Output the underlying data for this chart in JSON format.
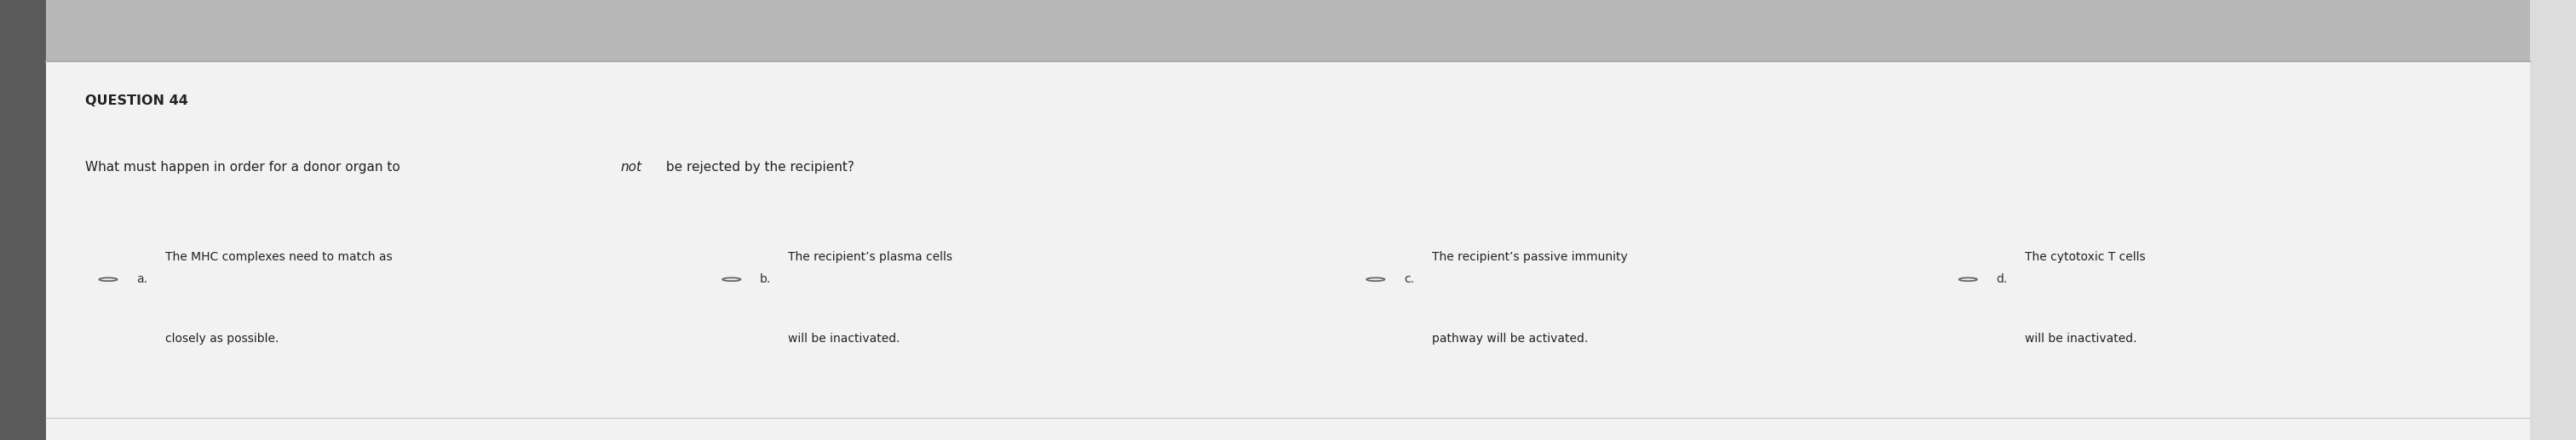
{
  "bg_color": "#e0e0e0",
  "panel_color": "#f2f2f2",
  "border_color": "#cccccc",
  "question_number": "QUESTION 44",
  "question_text_part1": "What must happen in order for a donor organ to ",
  "question_text_italic": "not",
  "question_text_part2": " be rejected by the recipient?",
  "options": [
    {
      "label": "a.",
      "line1": "The MHC complexes need to match as",
      "line2": "closely as possible."
    },
    {
      "label": "b.",
      "line1": "The recipient’s plasma cells",
      "line2": "will be inactivated."
    },
    {
      "label": "c.",
      "line1": "The recipient’s passive immunity",
      "line2": "pathway will be activated."
    },
    {
      "label": "d.",
      "line1": "The cytotoxic T cells",
      "line2": "will be inactivated."
    }
  ],
  "text_color": "#222222",
  "label_color": "#333333",
  "radio_color": "#666666",
  "top_bar_color": "#b8b8b8",
  "left_strip_color": "#5a5a5a",
  "right_strip_color": "#dcdcdc",
  "sep_line_color": "#aaaaaa",
  "bottom_line_color": "#cccccc",
  "question_label_fontsize": 11.5,
  "question_text_fontsize": 11,
  "option_fontsize": 10,
  "figwidth": 30.24,
  "figheight": 5.17
}
